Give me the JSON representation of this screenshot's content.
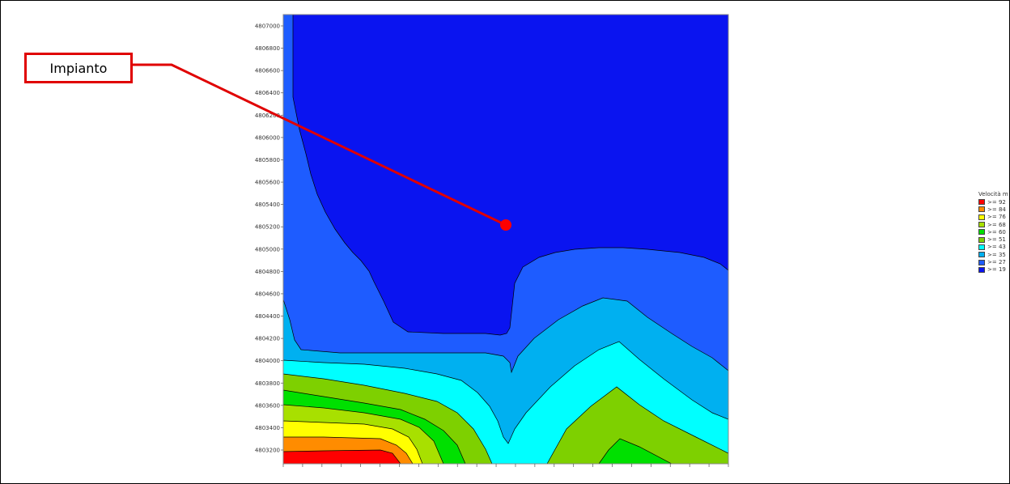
{
  "callout": {
    "label": "Impianto"
  },
  "chart_data": {
    "type": "heatmap",
    "subtype": "filled-contour",
    "title": "",
    "xlabel": "",
    "ylabel": "",
    "y_ticks": [
      "4807000",
      "4806800",
      "4806600",
      "4806400",
      "4806200",
      "4806000",
      "4805800",
      "4805600",
      "4805400",
      "4805200",
      "4805000",
      "4804800",
      "4804600",
      "4804400",
      "4804200",
      "4804000",
      "4803800",
      "4803600",
      "4803400",
      "4803200"
    ],
    "x_tick_count": 24,
    "legend": {
      "title": "Velocità m",
      "placement": "right",
      "levels": [
        {
          "label": ">= 92",
          "color": "#ff0000"
        },
        {
          "label": ">= 84",
          "color": "#ff8c00"
        },
        {
          "label": ">= 76",
          "color": "#ffff00"
        },
        {
          "label": ">= 68",
          "color": "#a8e000"
        },
        {
          "label": ">= 60",
          "color": "#00e000"
        },
        {
          "label": ">= 51",
          "color": "#7ed000"
        },
        {
          "label": ">= 43",
          "color": "#00ffff"
        },
        {
          "label": ">= 35",
          "color": "#00b0f0"
        },
        {
          "label": ">= 27",
          "color": "#1e5cff"
        },
        {
          "label": ">= 19",
          "color": "#0a14f0"
        }
      ]
    },
    "marker": {
      "label": "Impianto",
      "color": "#ff0000"
    }
  }
}
